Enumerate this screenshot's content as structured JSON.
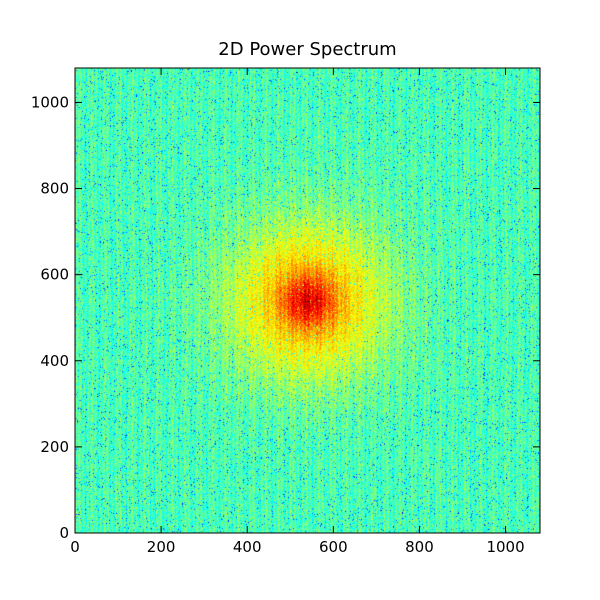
{
  "chart_data": {
    "type": "heatmap",
    "title": "2D Power Spectrum",
    "xlabel": "",
    "ylabel": "",
    "xlim": [
      0,
      1080
    ],
    "ylim": [
      0,
      1080
    ],
    "x_ticks": [
      0,
      200,
      400,
      600,
      800,
      1000
    ],
    "y_ticks": [
      0,
      200,
      400,
      600,
      800,
      1000
    ],
    "x_tick_labels": [
      "0",
      "200",
      "400",
      "600",
      "800",
      "1000"
    ],
    "y_tick_labels": [
      "0",
      "200",
      "400",
      "600",
      "800",
      "1000"
    ],
    "colormap": "jet",
    "grid": false,
    "legend": "none",
    "peak": {
      "center": [
        540,
        540
      ],
      "core_radius": 40,
      "halo_radius": 170
    },
    "background_level": 0.45,
    "peak_level": 0.8,
    "pattern": "noisy high-frequency vertical striations with a bright central peak"
  }
}
